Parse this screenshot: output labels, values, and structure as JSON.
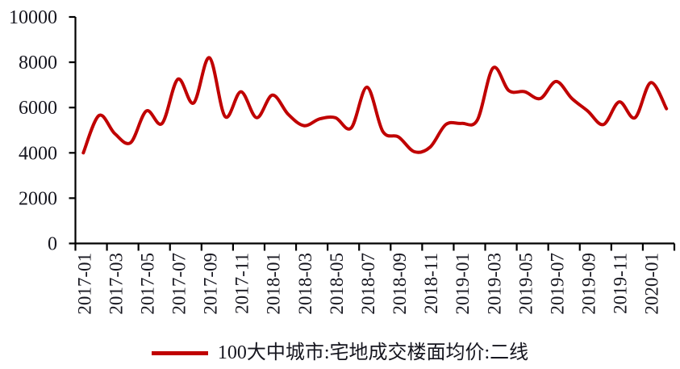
{
  "chart_data": {
    "type": "line",
    "title": "",
    "xlabel": "",
    "ylabel": "",
    "x": [
      "2017-01",
      "2017-02",
      "2017-03",
      "2017-04",
      "2017-05",
      "2017-06",
      "2017-07",
      "2017-08",
      "2017-09",
      "2017-10",
      "2017-11",
      "2017-12",
      "2018-01",
      "2018-02",
      "2018-03",
      "2018-04",
      "2018-05",
      "2018-06",
      "2018-07",
      "2018-08",
      "2018-09",
      "2018-10",
      "2018-11",
      "2018-12",
      "2019-01",
      "2019-02",
      "2019-03",
      "2019-04",
      "2019-05",
      "2019-06",
      "2019-07",
      "2019-08",
      "2019-09",
      "2019-10",
      "2019-11",
      "2019-12",
      "2020-01",
      "2020-02"
    ],
    "series": [
      {
        "name": "100大中城市:宅地成交楼面均价:二线",
        "values": [
          4000,
          5650,
          4850,
          4450,
          5850,
          5300,
          7250,
          6200,
          8200,
          5600,
          6700,
          5550,
          6550,
          5700,
          5200,
          5500,
          5550,
          5100,
          6900,
          4950,
          4700,
          4050,
          4250,
          5250,
          5300,
          5450,
          7750,
          6750,
          6700,
          6400,
          7150,
          6400,
          5850,
          5250,
          6250,
          5550,
          7100,
          5950
        ]
      }
    ],
    "x_tick_labels": [
      "2017-01",
      "2017-03",
      "2017-05",
      "2017-07",
      "2017-09",
      "2017-11",
      "2018-01",
      "2018-03",
      "2018-05",
      "2018-07",
      "2018-09",
      "2018-11",
      "2019-01",
      "2019-03",
      "2019-05",
      "2019-07",
      "2019-09",
      "2019-11",
      "2020-01"
    ],
    "y_ticks": [
      0,
      2000,
      4000,
      6000,
      8000,
      10000
    ],
    "y_tick_labels": [
      "0",
      "2000",
      "4000",
      "6000",
      "8000",
      "10000"
    ],
    "ylim": [
      0,
      10000
    ],
    "smooth": true,
    "grid": false,
    "line_color": "#c00000",
    "axis_color": "#000000",
    "text_color": "#16161f",
    "legend_position": "bottom-center"
  },
  "legend": {
    "label": "100大中城市:宅地成交楼面均价:二线"
  }
}
